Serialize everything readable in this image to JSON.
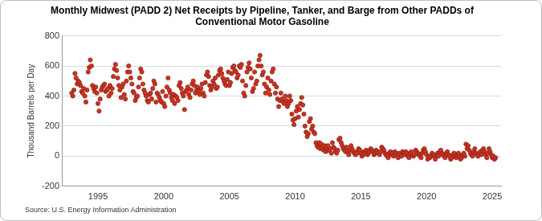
{
  "chart_data": {
    "type": "scatter",
    "title": [
      "Monthly Midwest (PADD 2) Net Receipts by Pipeline, Tanker, and Barge from Other PADDs of",
      "Conventional Motor Gasoline"
    ],
    "y_label": "Thousand Barrels per Day",
    "annotations": [
      "Source: U.S. Energy Information Administration"
    ],
    "color": "#cc3322",
    "marker": "circle",
    "grid": true,
    "ylim": [
      -200,
      800
    ],
    "yticks": [
      -200,
      0,
      200,
      400,
      600,
      800
    ],
    "categories": [
      null,
      null,
      null,
      null,
      null,
      null,
      null,
      null,
      null,
      null,
      null,
      null,
      null,
      null,
      null,
      null,
      null,
      null,
      null,
      null,
      null,
      null,
      null,
      null,
      "1995",
      null,
      null,
      null,
      null,
      null,
      null,
      null,
      null,
      null,
      null,
      null,
      null,
      null,
      null,
      null,
      null,
      null,
      null,
      null,
      null,
      null,
      null,
      null,
      null,
      null,
      null,
      null,
      null,
      null,
      null,
      null,
      null,
      null,
      null,
      null,
      null,
      null,
      null,
      null,
      null,
      null,
      null,
      null,
      null,
      null,
      null,
      null,
      null,
      null,
      null,
      null,
      null,
      null,
      null,
      null,
      null,
      null,
      null,
      null,
      "2000",
      null,
      null,
      null,
      null,
      null,
      null,
      null,
      null,
      null,
      null,
      null,
      null,
      null,
      null,
      null,
      null,
      null,
      null,
      null,
      null,
      null,
      null,
      null,
      null,
      null,
      null,
      null,
      null,
      null,
      null,
      null,
      null,
      null,
      null,
      null,
      null,
      null,
      null,
      null,
      null,
      null,
      null,
      null,
      null,
      null,
      null,
      null,
      null,
      null,
      null,
      null,
      null,
      null,
      null,
      null,
      null,
      null,
      null,
      null,
      "2005",
      null,
      null,
      null,
      null,
      null,
      null,
      null,
      null,
      null,
      null,
      null,
      null,
      null,
      null,
      null,
      null,
      null,
      null,
      null,
      null,
      null,
      null,
      null,
      null,
      null,
      null,
      null,
      null,
      null,
      null,
      null,
      null,
      null,
      null,
      null,
      null,
      null,
      null,
      null,
      null,
      null,
      null,
      null,
      null,
      null,
      null,
      null,
      null,
      null,
      null,
      null,
      null,
      null,
      null,
      null,
      null,
      null,
      null,
      null,
      "2010",
      null,
      null,
      null,
      null,
      null,
      null,
      null,
      null,
      null,
      null,
      null,
      null,
      null,
      null,
      null,
      null,
      null,
      null,
      null,
      null,
      null,
      null,
      null,
      null,
      null,
      null,
      null,
      null,
      null,
      null,
      null,
      null,
      null,
      null,
      null,
      null,
      null,
      null,
      null,
      null,
      null,
      null,
      null,
      null,
      null,
      null,
      null,
      null,
      null,
      null,
      null,
      null,
      null,
      null,
      null,
      null,
      null,
      null,
      null,
      "2015",
      null,
      null,
      null,
      null,
      null,
      null,
      null,
      null,
      null,
      null,
      null,
      null,
      null,
      null,
      null,
      null,
      null,
      null,
      null,
      null,
      null,
      null,
      null,
      null,
      null,
      null,
      null,
      null,
      null,
      null,
      null,
      null,
      null,
      null,
      null,
      null,
      null,
      null,
      null,
      null,
      null,
      null,
      null,
      null,
      null,
      null,
      null,
      null,
      null,
      null,
      null,
      null,
      null,
      null,
      null,
      null,
      null,
      null,
      null,
      "2020",
      null,
      null,
      null,
      null,
      null,
      null,
      null,
      null,
      null,
      null,
      null,
      null,
      null,
      null,
      null,
      null,
      null,
      null,
      null,
      null,
      null,
      null,
      null,
      null,
      null,
      null,
      null,
      null,
      null,
      null,
      null,
      null,
      null,
      null,
      null,
      null,
      null,
      null,
      null,
      null,
      null,
      null,
      null,
      null,
      null,
      null,
      null,
      null,
      null,
      null,
      null,
      null,
      null,
      null,
      null,
      null,
      null,
      null,
      null,
      "2025",
      null,
      null,
      null
    ],
    "values": [
      420,
      400,
      440,
      550,
      520,
      480,
      500,
      490,
      470,
      430,
      420,
      450,
      400,
      360,
      440,
      560,
      590,
      640,
      600,
      470,
      450,
      430,
      460,
      420,
      350,
      300,
      380,
      440,
      460,
      470,
      480,
      430,
      440,
      450,
      400,
      470,
      420,
      450,
      530,
      580,
      610,
      570,
      520,
      470,
      440,
      390,
      460,
      480,
      410,
      380,
      500,
      560,
      600,
      560,
      520,
      480,
      430,
      420,
      370,
      390,
      400,
      460,
      520,
      580,
      560,
      480,
      440,
      420,
      400,
      370,
      360,
      410,
      420,
      380,
      450,
      500,
      480,
      360,
      420,
      410,
      390,
      370,
      360,
      430,
      350,
      330,
      400,
      460,
      520,
      440,
      420,
      390,
      370,
      410,
      350,
      400,
      390,
      370,
      470,
      490,
      450,
      420,
      400,
      310,
      430,
      440,
      460,
      410,
      390,
      440,
      480,
      500,
      470,
      420,
      440,
      460,
      430,
      410,
      450,
      480,
      420,
      400,
      490,
      540,
      560,
      530,
      470,
      440,
      460,
      500,
      480,
      520,
      450,
      460,
      540,
      570,
      580,
      550,
      520,
      500,
      480,
      470,
      510,
      560,
      470,
      490,
      550,
      590,
      600,
      570,
      560,
      520,
      540,
      600,
      590,
      610,
      500,
      420,
      400,
      470,
      560,
      590,
      620,
      580,
      520,
      430,
      450,
      560,
      480,
      500,
      600,
      640,
      670,
      600,
      540,
      560,
      480,
      420,
      460,
      520,
      440,
      410,
      500,
      560,
      580,
      480,
      420,
      460,
      380,
      330,
      370,
      420,
      380,
      360,
      350,
      400,
      370,
      330,
      350,
      400,
      370,
      280,
      240,
      210,
      250,
      300,
      330,
      260,
      310,
      350,
      390,
      340,
      280,
      200,
      160,
      130,
      150,
      230,
      250,
      180,
      200,
      160,
      150,
      90,
      70,
      60,
      90,
      50,
      80,
      60,
      40,
      70,
      30,
      50,
      70,
      40,
      50,
      20,
      90,
      60,
      50,
      30,
      20,
      40,
      110,
      120,
      90,
      70,
      50,
      40,
      30,
      60,
      30,
      10,
      40,
      70,
      50,
      30,
      20,
      10,
      30,
      20,
      50,
      40,
      20,
      0,
      10,
      30,
      20,
      40,
      10,
      20,
      30,
      50,
      40,
      30,
      10,
      20,
      40,
      30,
      20,
      10,
      30,
      60,
      50,
      40,
      20,
      10,
      0,
      -10,
      20,
      30,
      10,
      20,
      0,
      30,
      20,
      10,
      -10,
      20,
      10,
      0,
      30,
      20,
      10,
      30,
      20,
      0,
      -10,
      20,
      30,
      10,
      0,
      10,
      40,
      30,
      20,
      10,
      0,
      -10,
      20,
      40,
      50,
      30,
      10,
      -20,
      0,
      -10,
      0,
      20,
      10,
      0,
      -20,
      10,
      20,
      0,
      30,
      40,
      20,
      10,
      0,
      -10,
      20,
      30,
      10,
      0,
      -20,
      -10,
      10,
      20,
      0,
      -10,
      10,
      20,
      0,
      -20,
      -10,
      10,
      20,
      0,
      80,
      50,
      70,
      40,
      20,
      10,
      0,
      30,
      50,
      20,
      10,
      0,
      20,
      30,
      10,
      40,
      50,
      30,
      10,
      -10,
      20,
      50,
      30,
      10,
      -10,
      0,
      -20,
      -10
    ]
  }
}
